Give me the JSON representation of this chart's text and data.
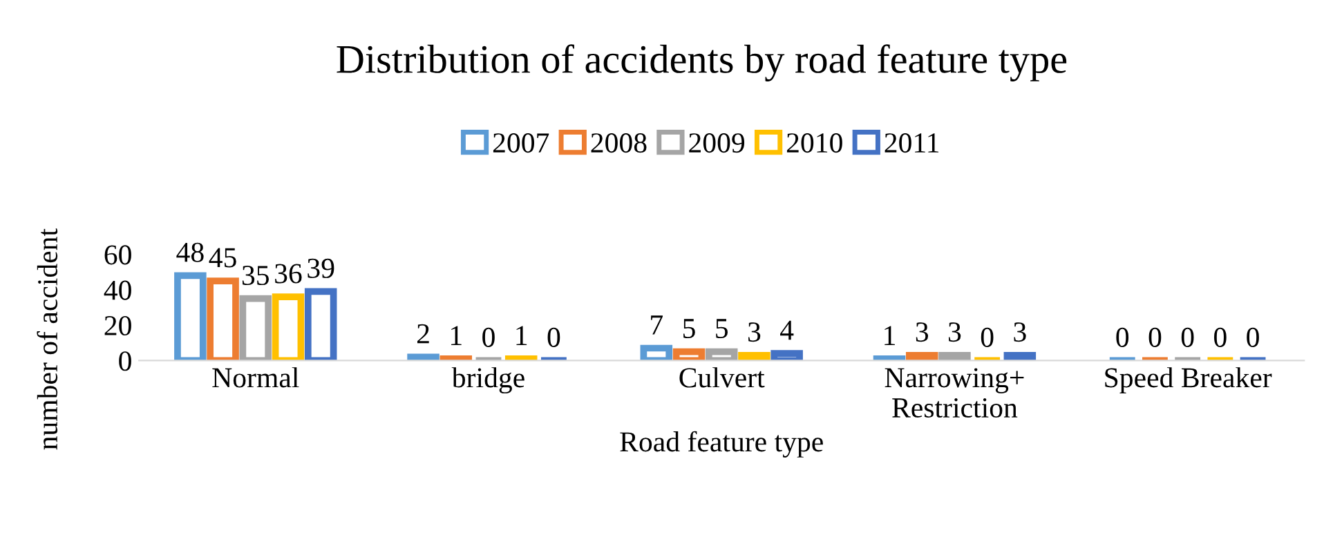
{
  "chart_data": {
    "type": "bar",
    "title": "Distribution of accidents by road feature type",
    "xlabel": "Road feature type",
    "ylabel": "number of accident",
    "categories": [
      "Normal",
      "bridge",
      "Culvert",
      "Narrowing+\nRestriction",
      "Speed Breaker"
    ],
    "series": [
      {
        "name": "2007",
        "color": "#5b9bd5",
        "values": [
          48,
          2,
          7,
          1,
          0
        ]
      },
      {
        "name": "2008",
        "color": "#ed7d31",
        "values": [
          45,
          1,
          5,
          3,
          0
        ]
      },
      {
        "name": "2009",
        "color": "#a5a5a5",
        "values": [
          35,
          0,
          5,
          3,
          0
        ]
      },
      {
        "name": "2010",
        "color": "#ffc000",
        "values": [
          36,
          1,
          3,
          0,
          0
        ]
      },
      {
        "name": "2011",
        "color": "#4472c4",
        "values": [
          39,
          0,
          4,
          3,
          0
        ]
      }
    ],
    "ylim": [
      0,
      60
    ],
    "yticks": [
      0,
      20,
      40,
      60
    ],
    "grid": false,
    "legend": "top",
    "data_labels": true
  }
}
